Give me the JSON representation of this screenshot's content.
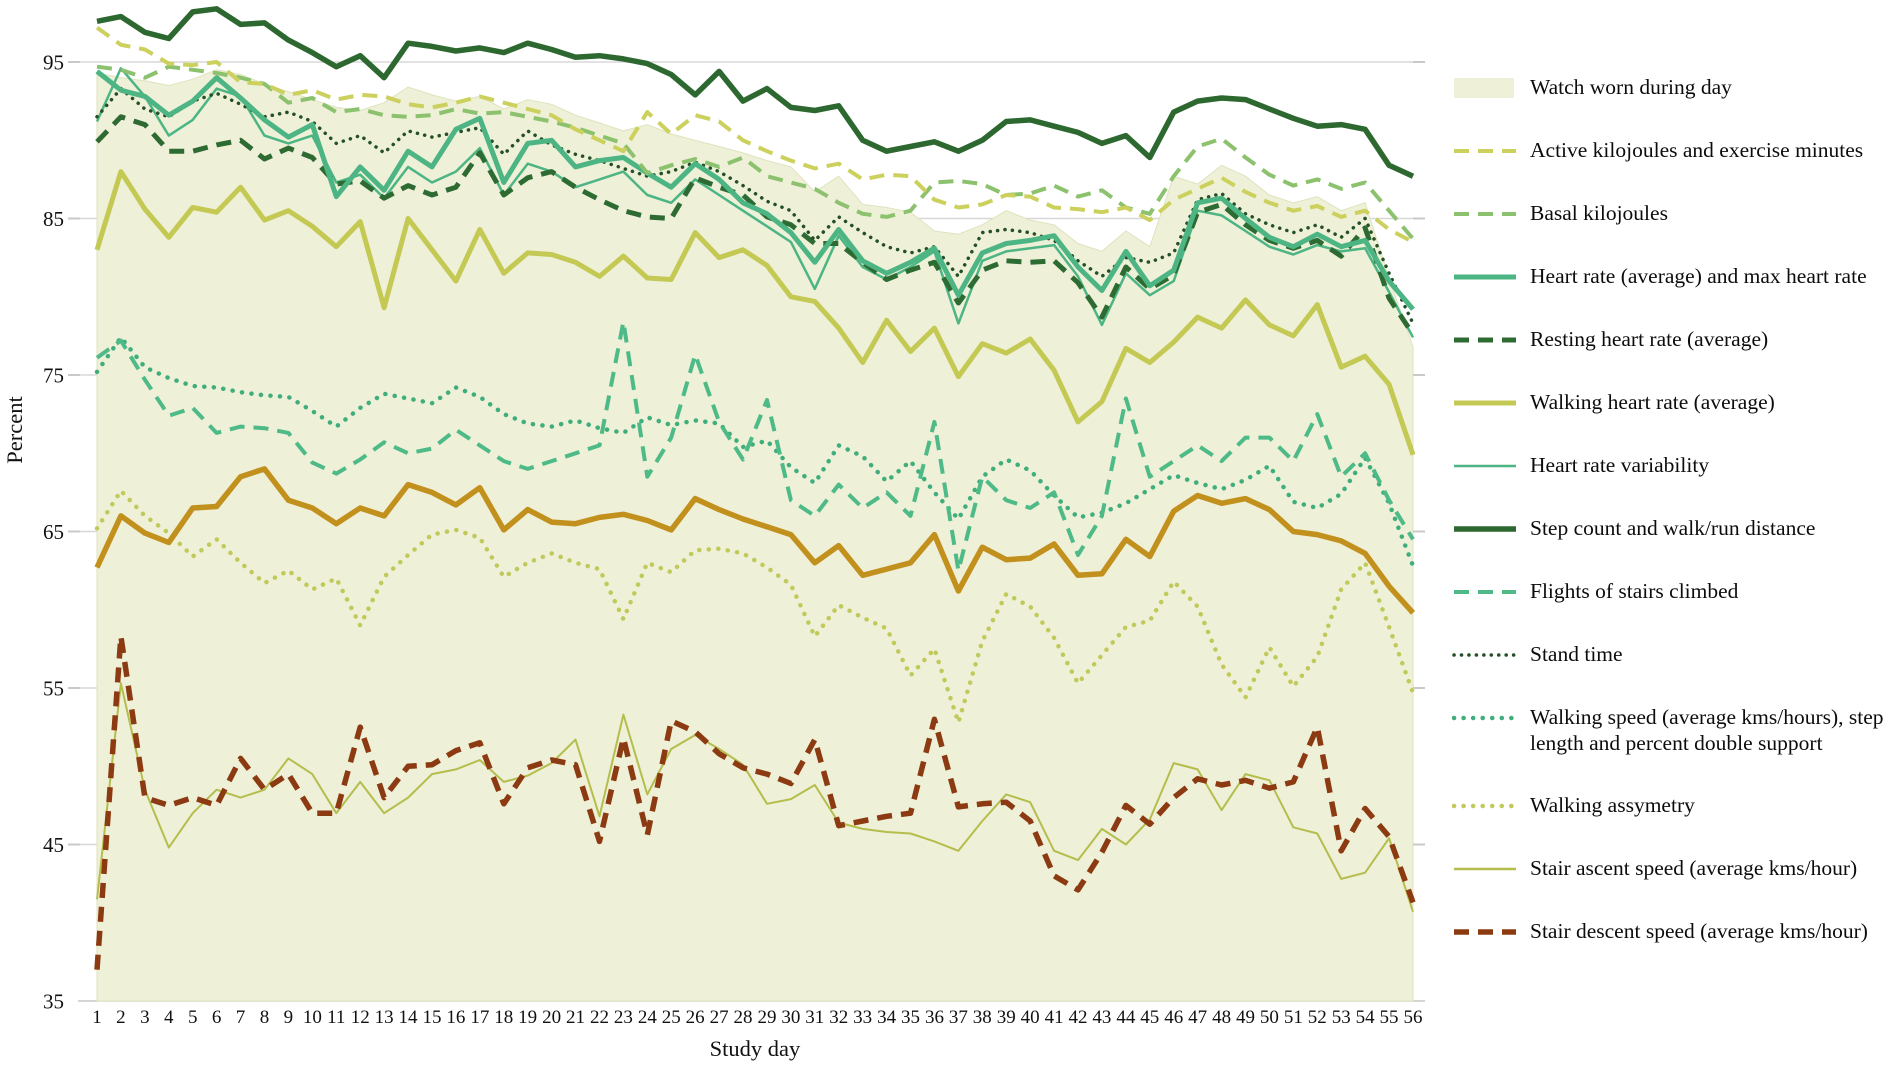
{
  "axes": {
    "x_label": "Study day",
    "y_label": "Percent",
    "y_ticks": [
      95,
      85,
      75,
      65,
      55,
      45,
      35
    ]
  },
  "colors": {
    "background": "#ffffff",
    "grid": "#d8d8d8",
    "axis_line": "#c9c9c9",
    "text": "#111111",
    "area_fill": "#eef0d8"
  },
  "legend": {
    "items": [
      {
        "key": "watch-worn",
        "label": "Watch worn during day",
        "swatch": "fill",
        "color": "#eef0d8",
        "width": 0
      },
      {
        "key": "active-kilojoules",
        "label": "Active kilojoules and exercise minutes",
        "swatch": "dashed",
        "color": "#ccd05c",
        "width": 4
      },
      {
        "key": "basal-kilojoules",
        "label": "Basal kilojoules",
        "swatch": "dashed",
        "color": "#8cc16d",
        "width": 4
      },
      {
        "key": "heart-rate",
        "label": "Heart rate (average) and max heart rate",
        "swatch": "solid",
        "color": "#4cb583",
        "width": 5
      },
      {
        "key": "resting-heart-rate",
        "label": "Resting heart rate (average)",
        "swatch": "dashed",
        "color": "#2e6b33",
        "width": 5
      },
      {
        "key": "walking-heart-rate",
        "label": "Walking heart rate (average)",
        "swatch": "solid",
        "color": "#c4c954",
        "width": 5
      },
      {
        "key": "heart-rate-variability",
        "label": "Heart rate variability",
        "swatch": "solid",
        "color": "#4cb583",
        "width": 2.5
      },
      {
        "key": "step-count",
        "label": "Step count and walk/run distance",
        "swatch": "solid",
        "color": "#2c682f",
        "width": 5.5
      },
      {
        "key": "flights-climbed",
        "label": "Flights of stairs climbed",
        "swatch": "dashed",
        "color": "#4eba87",
        "width": 4
      },
      {
        "key": "stand-time",
        "label": "Stand time",
        "swatch": "dotted",
        "color": "#254f26",
        "width": 3.5
      },
      {
        "key": "walking-speed",
        "label": "Walking speed (average kms/hours), step length and percent double support",
        "swatch": "dotted",
        "color": "#3fae7c",
        "width": 4.5
      },
      {
        "key": "walking-asymmetry",
        "label": "Walking assymetry",
        "swatch": "dotted",
        "color": "#c2c95b",
        "width": 4.5
      },
      {
        "key": "stair-ascent",
        "label": "Stair ascent speed (average kms/hour)",
        "swatch": "solid",
        "color": "#b5bd4c",
        "width": 2
      },
      {
        "key": "stair-descent",
        "label": "Stair descent speed (average kms/hour)",
        "swatch": "dashed",
        "color": "#8c3a11",
        "width": 5.5
      }
    ]
  },
  "chart_data": {
    "type": "line",
    "xlabel": "Study day",
    "ylabel": "Percent",
    "ylim": [
      35,
      99.5
    ],
    "grid": "horizontal",
    "legend_position": "right",
    "x": [
      1,
      2,
      3,
      4,
      5,
      6,
      7,
      8,
      9,
      10,
      11,
      12,
      13,
      14,
      15,
      16,
      17,
      18,
      19,
      20,
      21,
      22,
      23,
      24,
      25,
      26,
      27,
      28,
      29,
      30,
      31,
      32,
      33,
      34,
      35,
      36,
      37,
      38,
      39,
      40,
      41,
      42,
      43,
      44,
      45,
      46,
      47,
      48,
      49,
      50,
      51,
      52,
      53,
      54,
      55,
      56
    ],
    "area_series": {
      "name": "Watch worn during day",
      "key": "watch-worn",
      "color": "#eef0d8",
      "values": [
        94.3,
        94.0,
        93.8,
        93.5,
        93.9,
        94.5,
        94.2,
        93.6,
        93.1,
        92.6,
        92.1,
        91.9,
        92.4,
        93.4,
        92.9,
        92.5,
        92.8,
        92.0,
        92.6,
        92.3,
        91.6,
        91.1,
        90.6,
        91.0,
        90.4,
        90.0,
        89.6,
        89.2,
        88.7,
        88.3,
        86.7,
        87.7,
        85.9,
        85.7,
        85.4,
        84.2,
        84.0,
        84.6,
        85.5,
        84.9,
        84.6,
        83.4,
        82.9,
        84.2,
        83.2,
        87.7,
        87.2,
        88.4,
        87.7,
        86.5,
        86.0,
        86.4,
        85.5,
        86.0,
        81.2,
        76.8
      ]
    },
    "series": [
      {
        "name": "Walking assymetry",
        "key": "walking-asymmetry",
        "style": "dotted",
        "color": "#c2c95b",
        "width": 4.5,
        "values": [
          65.2,
          67.6,
          66.0,
          64.9,
          63.4,
          64.5,
          63.0,
          61.7,
          62.5,
          61.3,
          62.0,
          59.0,
          62.1,
          63.5,
          64.8,
          65.1,
          64.6,
          62.1,
          63.0,
          63.6,
          63.0,
          62.6,
          59.4,
          63.0,
          62.4,
          63.8,
          63.9,
          63.6,
          62.7,
          61.6,
          58.3,
          60.3,
          59.5,
          58.8,
          55.8,
          57.5,
          52.8,
          58.0,
          61.0,
          60.2,
          58.2,
          55.3,
          57.1,
          58.9,
          59.3,
          61.8,
          60.2,
          56.5,
          54.4,
          57.6,
          55.1,
          57.0,
          61.3,
          63.0,
          58.9,
          54.7
        ]
      },
      {
        "name": "Walking speed (average kms/hours), step length and percent double support",
        "key": "walking-speed",
        "style": "dotted",
        "color": "#3fae7c",
        "width": 4.5,
        "values": [
          75.2,
          77.4,
          75.5,
          74.8,
          74.3,
          74.2,
          73.9,
          73.7,
          73.6,
          72.7,
          71.7,
          72.9,
          73.8,
          73.5,
          73.2,
          74.2,
          73.6,
          72.5,
          71.9,
          71.7,
          72.1,
          71.6,
          71.3,
          72.3,
          71.8,
          72.1,
          71.9,
          70.4,
          70.8,
          69.1,
          68.1,
          70.5,
          69.8,
          68.2,
          69.5,
          67.5,
          65.8,
          68.5,
          69.6,
          68.9,
          67.3,
          65.9,
          66.2,
          66.8,
          67.7,
          68.6,
          68.1,
          67.7,
          68.3,
          69.2,
          66.9,
          66.5,
          67.4,
          69.7,
          66.8,
          62.8
        ]
      },
      {
        "name": "Flights of stairs climbed",
        "key": "flights-climbed",
        "style": "dashed",
        "color": "#4eba87",
        "width": 4,
        "values": [
          76.1,
          77.2,
          74.7,
          72.4,
          72.9,
          71.3,
          71.7,
          71.6,
          71.3,
          69.4,
          68.7,
          69.6,
          70.7,
          70.0,
          70.3,
          71.5,
          70.5,
          69.5,
          69.0,
          69.5,
          70.0,
          70.5,
          78.4,
          68.5,
          71.0,
          76.3,
          72.0,
          69.6,
          73.4,
          67.0,
          66.0,
          68.0,
          66.5,
          67.5,
          66.0,
          72.0,
          62.5,
          68.5,
          67.0,
          66.5,
          67.5,
          63.5,
          66.0,
          73.5,
          68.5,
          69.5,
          70.5,
          69.5,
          71.0,
          71.0,
          69.5,
          72.5,
          68.5,
          70.0,
          67.0,
          64.5
        ]
      },
      {
        "name": "Stair ascent speed (average kms/hour)",
        "key": "stair-ascent",
        "style": "solid",
        "color": "#b5bd4c",
        "width": 2,
        "values": [
          41.5,
          55.3,
          48.5,
          44.8,
          47.0,
          48.5,
          48.0,
          48.5,
          50.5,
          49.5,
          47.0,
          49.0,
          47.0,
          48.0,
          49.5,
          49.8,
          50.4,
          49.0,
          49.4,
          50.2,
          51.7,
          46.8,
          53.3,
          48.2,
          51.1,
          52.0,
          51.1,
          50.1,
          47.6,
          47.9,
          48.8,
          46.4,
          46.0,
          45.8,
          45.7,
          45.2,
          44.6,
          46.5,
          48.2,
          47.7,
          44.6,
          44.0,
          46.0,
          45.0,
          46.6,
          50.2,
          49.8,
          47.2,
          49.5,
          49.1,
          46.1,
          45.7,
          42.8,
          43.2,
          45.4,
          40.7
        ]
      },
      {
        "name": "Stair descent speed (average kms/hour)",
        "key": "stair-descent",
        "style": "dashed",
        "color": "#8c3a11",
        "width": 5.5,
        "values": [
          37.0,
          58.3,
          48.0,
          47.5,
          48.0,
          47.5,
          50.5,
          48.5,
          49.5,
          47.0,
          47.0,
          52.5,
          48.0,
          50.0,
          50.1,
          51.0,
          51.5,
          47.6,
          49.9,
          50.4,
          50.1,
          45.2,
          51.8,
          45.6,
          52.9,
          52.2,
          50.8,
          49.9,
          49.5,
          48.9,
          51.7,
          46.2,
          46.5,
          46.8,
          47.0,
          53.0,
          47.4,
          47.6,
          47.7,
          46.5,
          43.0,
          42.1,
          44.5,
          47.5,
          46.3,
          48.0,
          49.2,
          48.8,
          49.1,
          48.6,
          49.0,
          52.5,
          44.6,
          47.3,
          45.5,
          41.3
        ]
      },
      {
        "name": "(unlabeled gold line)",
        "key": "unlabeled-gold",
        "style": "solid",
        "color": "#c2901d",
        "width": 5.5,
        "values": [
          62.7,
          66.0,
          64.9,
          64.3,
          66.5,
          66.6,
          68.5,
          69.0,
          67.0,
          66.5,
          65.5,
          66.5,
          66.0,
          68.0,
          67.5,
          66.7,
          67.8,
          65.1,
          66.4,
          65.6,
          65.5,
          65.9,
          66.1,
          65.7,
          65.1,
          67.1,
          66.4,
          65.8,
          65.3,
          64.8,
          63.0,
          64.1,
          62.2,
          62.6,
          63.0,
          64.8,
          61.2,
          64.0,
          63.2,
          63.3,
          64.2,
          62.2,
          62.3,
          64.5,
          63.4,
          66.3,
          67.3,
          66.8,
          67.1,
          66.4,
          65.0,
          64.8,
          64.4,
          63.6,
          61.5,
          59.8
        ]
      },
      {
        "name": "Walking heart rate (average)",
        "key": "walking-heart-rate",
        "style": "solid",
        "color": "#c4c954",
        "width": 5,
        "values": [
          83.0,
          88.0,
          85.6,
          83.8,
          85.7,
          85.4,
          87.0,
          84.9,
          85.5,
          84.5,
          83.2,
          84.8,
          79.3,
          85.0,
          83.0,
          81.0,
          84.3,
          81.5,
          82.8,
          82.7,
          82.2,
          81.3,
          82.6,
          81.2,
          81.1,
          84.1,
          82.5,
          83.0,
          82.0,
          80.0,
          79.7,
          78.0,
          75.8,
          78.5,
          76.5,
          78.0,
          74.9,
          77.0,
          76.4,
          77.3,
          75.3,
          72.0,
          73.3,
          76.7,
          75.8,
          77.1,
          78.7,
          78.0,
          79.8,
          78.2,
          77.5,
          79.5,
          75.5,
          76.2,
          74.4,
          69.9
        ]
      },
      {
        "name": "Heart rate variability",
        "key": "heart-rate-variability",
        "style": "solid",
        "color": "#4cb583",
        "width": 2.5,
        "values": [
          91.2,
          94.6,
          92.8,
          90.3,
          91.3,
          93.3,
          92.8,
          90.3,
          89.8,
          90.3,
          87.3,
          87.8,
          86.3,
          88.3,
          87.3,
          88.0,
          89.5,
          86.5,
          88.5,
          88.0,
          87.0,
          87.5,
          88.0,
          86.5,
          86.0,
          87.5,
          86.5,
          85.5,
          84.5,
          83.5,
          80.5,
          83.9,
          81.9,
          81.1,
          81.9,
          82.9,
          78.3,
          82.3,
          82.9,
          83.1,
          83.3,
          81.3,
          78.2,
          81.5,
          80.1,
          81.0,
          85.5,
          85.2,
          84.2,
          83.2,
          82.7,
          83.3,
          82.9,
          83.1,
          80.3,
          77.4
        ]
      },
      {
        "name": "Resting heart rate (average)",
        "key": "resting-heart-rate",
        "style": "dashed",
        "color": "#2e6b33",
        "width": 5,
        "values": [
          89.9,
          91.5,
          91.0,
          89.3,
          89.3,
          89.7,
          90.0,
          88.8,
          89.5,
          88.9,
          87.2,
          87.4,
          86.3,
          87.1,
          86.5,
          87.0,
          89.2,
          86.5,
          87.6,
          88.0,
          87.0,
          86.2,
          85.5,
          85.1,
          85.0,
          87.6,
          87.0,
          86.5,
          85.1,
          84.6,
          83.4,
          83.4,
          82.2,
          81.1,
          81.7,
          82.2,
          79.6,
          81.7,
          82.3,
          82.2,
          82.3,
          80.9,
          78.7,
          81.9,
          80.5,
          81.4,
          85.4,
          85.9,
          84.6,
          83.6,
          83.1,
          83.6,
          82.6,
          84.4,
          79.9,
          77.6
        ]
      },
      {
        "name": "Stand time",
        "key": "stand-time",
        "style": "dotted",
        "color": "#254f26",
        "width": 3.5,
        "values": [
          91.5,
          93.3,
          92.0,
          91.5,
          92.5,
          93.0,
          92.3,
          91.5,
          91.8,
          91.2,
          89.8,
          90.3,
          89.2,
          90.6,
          90.2,
          90.5,
          90.8,
          89.1,
          90.6,
          89.7,
          89.1,
          88.7,
          88.2,
          87.7,
          88.0,
          88.6,
          88.0,
          87.1,
          86.1,
          85.5,
          83.6,
          85.1,
          84.1,
          83.2,
          82.8,
          83.2,
          81.3,
          84.1,
          84.3,
          84.1,
          83.6,
          82.3,
          81.3,
          82.5,
          82.2,
          82.8,
          86.2,
          86.6,
          85.3,
          84.6,
          84.1,
          84.6,
          83.8,
          85.0,
          81.5,
          78.3
        ]
      },
      {
        "name": "Heart rate (average) and max heart rate",
        "key": "heart-rate",
        "style": "solid",
        "color": "#4cb583",
        "width": 5,
        "values": [
          94.4,
          93.2,
          92.8,
          91.6,
          92.5,
          94.0,
          92.7,
          91.3,
          90.2,
          91.0,
          86.4,
          88.3,
          86.8,
          89.3,
          88.3,
          90.7,
          91.4,
          87.3,
          89.8,
          90.0,
          88.3,
          88.7,
          88.9,
          87.9,
          87.0,
          88.5,
          87.5,
          86.0,
          85.3,
          84.1,
          82.2,
          84.3,
          82.3,
          81.5,
          82.2,
          83.1,
          80.1,
          82.8,
          83.4,
          83.6,
          83.9,
          81.9,
          80.4,
          82.9,
          80.7,
          81.7,
          86.0,
          86.3,
          85.0,
          83.8,
          83.2,
          84.0,
          83.2,
          83.6,
          81.0,
          79.2
        ]
      },
      {
        "name": "Basal kilojoules",
        "key": "basal-kilojoules",
        "style": "dashed",
        "color": "#8cc16d",
        "width": 4,
        "values": [
          94.7,
          94.5,
          94.0,
          94.7,
          94.5,
          94.3,
          94.0,
          93.6,
          92.4,
          92.7,
          91.8,
          92.0,
          91.6,
          91.5,
          91.6,
          92.0,
          91.7,
          91.8,
          91.5,
          91.2,
          90.8,
          90.3,
          89.8,
          87.9,
          88.4,
          88.8,
          88.3,
          88.9,
          87.7,
          87.3,
          86.9,
          86.0,
          85.3,
          85.1,
          85.5,
          87.3,
          87.4,
          87.2,
          86.5,
          86.6,
          87.1,
          86.4,
          86.8,
          85.7,
          85.3,
          87.7,
          89.6,
          90.1,
          88.9,
          87.8,
          87.1,
          87.5,
          86.9,
          87.3,
          85.5,
          83.7
        ]
      },
      {
        "name": "Active kilojoules and exercise minutes",
        "key": "active-kilojoules",
        "style": "dashed",
        "color": "#ccd05c",
        "width": 4,
        "values": [
          97.2,
          96.1,
          95.8,
          94.9,
          94.8,
          95.0,
          93.7,
          93.6,
          92.9,
          93.2,
          92.6,
          92.9,
          92.8,
          92.3,
          92.1,
          92.4,
          92.8,
          92.4,
          92.0,
          91.6,
          90.7,
          90.0,
          89.3,
          91.8,
          90.4,
          91.6,
          91.2,
          90.0,
          89.3,
          88.7,
          88.2,
          88.5,
          87.5,
          87.8,
          87.7,
          86.2,
          85.7,
          85.9,
          86.5,
          86.4,
          85.7,
          85.6,
          85.4,
          85.7,
          84.9,
          86.2,
          86.9,
          87.6,
          86.7,
          86.0,
          85.5,
          85.8,
          85.1,
          85.5,
          84.3,
          83.5
        ]
      },
      {
        "name": "Step count and walk/run distance",
        "key": "step-count",
        "style": "solid",
        "color": "#2c682f",
        "width": 5.5,
        "values": [
          97.6,
          97.9,
          96.9,
          96.5,
          98.2,
          98.4,
          97.4,
          97.5,
          96.4,
          95.6,
          94.7,
          95.4,
          94.0,
          96.2,
          96.0,
          95.7,
          95.9,
          95.6,
          96.2,
          95.8,
          95.3,
          95.4,
          95.2,
          94.9,
          94.2,
          92.9,
          94.4,
          92.5,
          93.3,
          92.1,
          91.9,
          92.2,
          90.0,
          89.3,
          89.6,
          89.9,
          89.3,
          90.0,
          91.2,
          91.3,
          90.9,
          90.5,
          89.8,
          90.3,
          88.9,
          91.8,
          92.5,
          92.7,
          92.6,
          92.0,
          91.4,
          90.9,
          91.0,
          90.7,
          88.4,
          87.7
        ]
      }
    ]
  }
}
